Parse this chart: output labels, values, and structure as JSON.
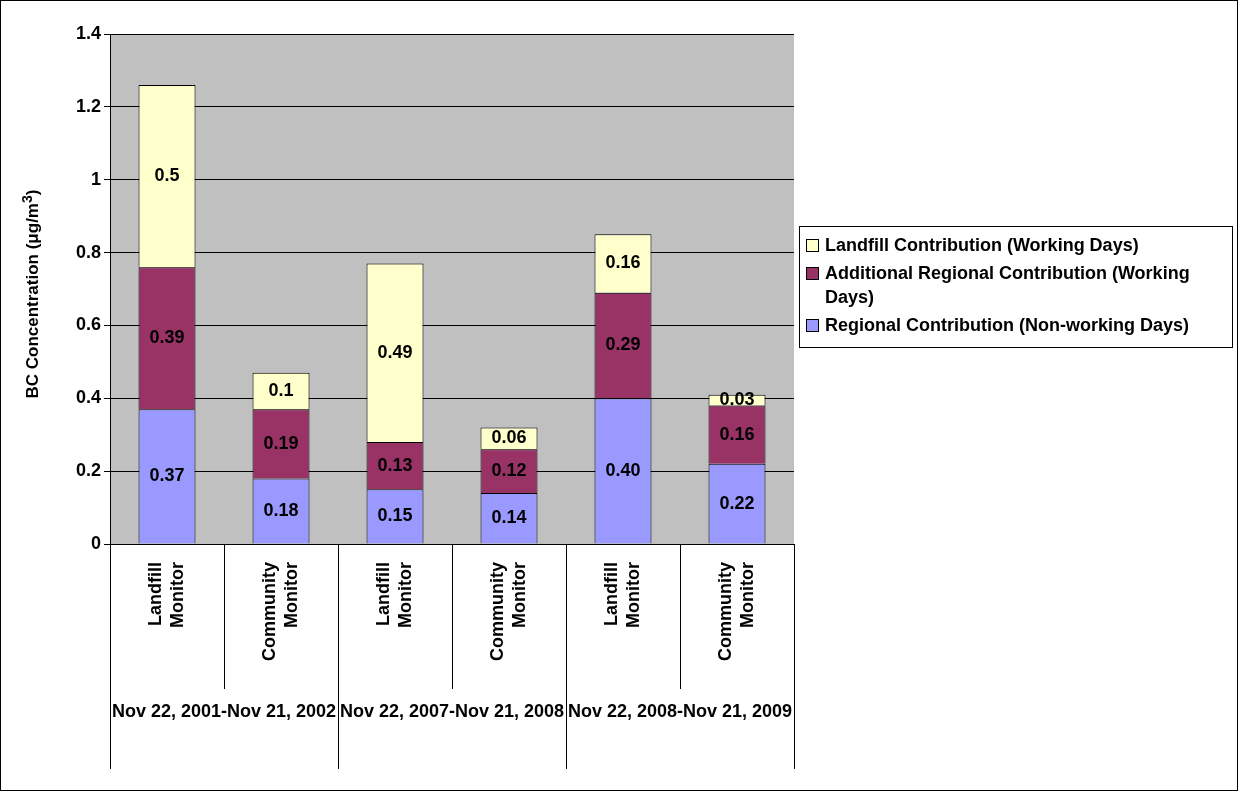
{
  "chart_data": {
    "type": "bar",
    "stacked": true,
    "ylabel": "BC Concentration (μg/m$^{3}$)",
    "categories": [
      "Landfill Monitor",
      "Community Monitor",
      "Landfill Monitor",
      "Community Monitor",
      "Landfill Monitor",
      "Community Monitor"
    ],
    "series": [
      {
        "name": "Regional Contribution (Non-working Days)",
        "color": "#9999ff",
        "values": [
          0.37,
          0.18,
          0.15,
          0.14,
          0.4,
          0.22
        ],
        "value_labels": [
          "0.37",
          "0.18",
          "0.15",
          "0.14",
          "0.40",
          "0.22"
        ]
      },
      {
        "name": "Additional Regional Contribution (Working Days)",
        "color": "#993366",
        "values": [
          0.39,
          0.19,
          0.13,
          0.12,
          0.29,
          0.16
        ],
        "value_labels": [
          "0.39",
          "0.19",
          "0.13",
          "0.12",
          "0.29",
          "0.16"
        ]
      },
      {
        "name": "Landfill Contribution (Working Days)",
        "color": "#ffffcc",
        "values": [
          0.5,
          0.1,
          0.49,
          0.06,
          0.16,
          0.03
        ],
        "value_labels": [
          "0.5",
          "0.1",
          "0.49",
          "0.06",
          "0.16",
          "0.03"
        ]
      }
    ],
    "ylim": [
      0,
      1.4
    ],
    "yticks": [
      0,
      0.2,
      0.4,
      0.6,
      0.8,
      1,
      1.2,
      1.4
    ],
    "grid": "y",
    "legend": "right",
    "annotations": [
      "Nov 22, 2001-Nov 21, 2002",
      "Nov 22, 2007-Nov 21, 2008",
      "Nov 22, 2008-Nov 21, 2009"
    ]
  }
}
